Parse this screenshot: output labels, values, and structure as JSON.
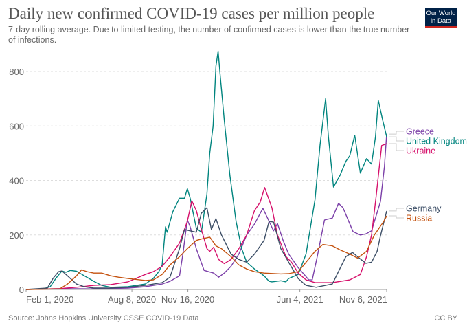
{
  "title": "Daily new confirmed COVID-19 cases per million people",
  "subtitle": "7-day rolling average. Due to limited testing, the number of confirmed cases is lower than the true number of infections.",
  "logo": {
    "line1": "Our World",
    "line2": "in Data",
    "bg_color": "#002147",
    "accent_color": "#ce261e"
  },
  "footer": {
    "source": "Source: Johns Hopkins University CSSE COVID-19 Data",
    "license": "CC BY"
  },
  "chart_data": {
    "type": "line",
    "title": "Daily new confirmed COVID-19 cases per million people",
    "xlabel": "",
    "ylabel": "",
    "xlim": [
      "2020-02-01",
      "2021-11-06"
    ],
    "ylim": [
      0,
      800
    ],
    "x_ticks": [
      {
        "date": "2020-02-01",
        "label": "Feb 1, 2020"
      },
      {
        "date": "2020-08-08",
        "label": "Aug 8, 2020"
      },
      {
        "date": "2020-11-16",
        "label": "Nov 16, 2020"
      },
      {
        "date": "2021-06-04",
        "label": "Jun 4, 2021"
      },
      {
        "date": "2021-11-06",
        "label": "Nov 6, 2021"
      }
    ],
    "y_ticks": [
      0,
      200,
      400,
      600,
      800
    ],
    "grid": "horizontal dashed",
    "legend": "right, labels at line ends",
    "series": [
      {
        "name": "Greece",
        "color": "#7b3fa8",
        "points": [
          [
            "2020-02-01",
            0
          ],
          [
            "2020-04-01",
            3
          ],
          [
            "2020-06-01",
            2
          ],
          [
            "2020-08-01",
            5
          ],
          [
            "2020-09-01",
            10
          ],
          [
            "2020-10-01",
            20
          ],
          [
            "2020-10-15",
            30
          ],
          [
            "2020-11-01",
            50
          ],
          [
            "2020-11-07",
            130
          ],
          [
            "2020-11-15",
            255
          ],
          [
            "2020-11-20",
            230
          ],
          [
            "2020-12-01",
            150
          ],
          [
            "2020-12-15",
            70
          ],
          [
            "2021-01-01",
            60
          ],
          [
            "2021-01-10",
            45
          ],
          [
            "2021-01-20",
            60
          ],
          [
            "2021-02-01",
            85
          ],
          [
            "2021-02-15",
            130
          ],
          [
            "2021-03-01",
            200
          ],
          [
            "2021-03-15",
            240
          ],
          [
            "2021-03-30",
            298
          ],
          [
            "2021-04-10",
            250
          ],
          [
            "2021-04-18",
            215
          ],
          [
            "2021-04-25",
            242
          ],
          [
            "2021-05-05",
            180
          ],
          [
            "2021-05-15",
            130
          ],
          [
            "2021-06-01",
            80
          ],
          [
            "2021-06-20",
            35
          ],
          [
            "2021-06-26",
            35
          ],
          [
            "2021-07-05",
            120
          ],
          [
            "2021-07-18",
            255
          ],
          [
            "2021-08-01",
            262
          ],
          [
            "2021-08-12",
            316
          ],
          [
            "2021-08-20",
            300
          ],
          [
            "2021-09-07",
            212
          ],
          [
            "2021-09-20",
            200
          ],
          [
            "2021-09-30",
            204
          ],
          [
            "2021-10-10",
            215
          ],
          [
            "2021-10-26",
            323
          ],
          [
            "2021-11-02",
            450
          ],
          [
            "2021-11-06",
            570
          ]
        ]
      },
      {
        "name": "United Kingdom",
        "color": "#00847e",
        "points": [
          [
            "2020-02-01",
            0
          ],
          [
            "2020-03-01",
            1
          ],
          [
            "2020-03-15",
            10
          ],
          [
            "2020-03-25",
            40
          ],
          [
            "2020-04-05",
            68
          ],
          [
            "2020-04-12",
            63
          ],
          [
            "2020-04-20",
            70
          ],
          [
            "2020-05-01",
            67
          ],
          [
            "2020-05-15",
            50
          ],
          [
            "2020-06-01",
            30
          ],
          [
            "2020-06-15",
            15
          ],
          [
            "2020-07-01",
            8
          ],
          [
            "2020-08-01",
            10
          ],
          [
            "2020-09-01",
            20
          ],
          [
            "2020-09-15",
            40
          ],
          [
            "2020-09-25",
            65
          ],
          [
            "2020-10-01",
            90
          ],
          [
            "2020-10-07",
            230
          ],
          [
            "2020-10-10",
            210
          ],
          [
            "2020-10-20",
            285
          ],
          [
            "2020-11-01",
            335
          ],
          [
            "2020-11-10",
            335
          ],
          [
            "2020-11-15",
            370
          ],
          [
            "2020-11-20",
            335
          ],
          [
            "2020-12-01",
            225
          ],
          [
            "2020-12-10",
            210
          ],
          [
            "2020-12-20",
            350
          ],
          [
            "2020-12-25",
            500
          ],
          [
            "2020-12-31",
            600
          ],
          [
            "2021-01-05",
            820
          ],
          [
            "2021-01-09",
            875
          ],
          [
            "2021-01-12",
            800
          ],
          [
            "2021-01-20",
            620
          ],
          [
            "2021-01-30",
            420
          ],
          [
            "2021-02-10",
            250
          ],
          [
            "2021-02-20",
            150
          ],
          [
            "2021-03-01",
            100
          ],
          [
            "2021-03-15",
            75
          ],
          [
            "2021-04-01",
            50
          ],
          [
            "2021-04-10",
            30
          ],
          [
            "2021-04-15",
            28
          ],
          [
            "2021-05-01",
            32
          ],
          [
            "2021-05-10",
            28
          ],
          [
            "2021-05-15",
            40
          ],
          [
            "2021-06-01",
            55
          ],
          [
            "2021-06-15",
            130
          ],
          [
            "2021-07-01",
            330
          ],
          [
            "2021-07-10",
            530
          ],
          [
            "2021-07-20",
            700
          ],
          [
            "2021-07-25",
            560
          ],
          [
            "2021-08-03",
            376
          ],
          [
            "2021-08-15",
            420
          ],
          [
            "2021-08-25",
            470
          ],
          [
            "2021-09-01",
            490
          ],
          [
            "2021-09-10",
            566
          ],
          [
            "2021-09-20",
            427
          ],
          [
            "2021-10-01",
            480
          ],
          [
            "2021-10-10",
            460
          ],
          [
            "2021-10-17",
            560
          ],
          [
            "2021-10-22",
            694
          ],
          [
            "2021-10-30",
            620
          ],
          [
            "2021-11-06",
            560
          ]
        ]
      },
      {
        "name": "Ukraine",
        "color": "#d6106b",
        "points": [
          [
            "2020-02-01",
            0
          ],
          [
            "2020-04-01",
            3
          ],
          [
            "2020-05-01",
            8
          ],
          [
            "2020-06-01",
            15
          ],
          [
            "2020-07-01",
            18
          ],
          [
            "2020-08-01",
            28
          ],
          [
            "2020-09-01",
            55
          ],
          [
            "2020-09-15",
            65
          ],
          [
            "2020-10-01",
            85
          ],
          [
            "2020-10-15",
            120
          ],
          [
            "2020-11-01",
            170
          ],
          [
            "2020-11-15",
            250
          ],
          [
            "2020-11-23",
            325
          ],
          [
            "2020-12-01",
            290
          ],
          [
            "2020-12-10",
            220
          ],
          [
            "2020-12-20",
            150
          ],
          [
            "2020-12-25",
            140
          ],
          [
            "2021-01-01",
            155
          ],
          [
            "2021-01-10",
            110
          ],
          [
            "2021-01-20",
            95
          ],
          [
            "2021-02-01",
            110
          ],
          [
            "2021-02-15",
            150
          ],
          [
            "2021-03-01",
            200
          ],
          [
            "2021-03-15",
            290
          ],
          [
            "2021-03-25",
            320
          ],
          [
            "2021-04-02",
            374
          ],
          [
            "2021-04-15",
            300
          ],
          [
            "2021-04-25",
            200
          ],
          [
            "2021-05-10",
            121
          ],
          [
            "2021-05-20",
            100
          ],
          [
            "2021-06-01",
            60
          ],
          [
            "2021-06-15",
            35
          ],
          [
            "2021-07-01",
            25
          ],
          [
            "2021-08-01",
            25
          ],
          [
            "2021-09-01",
            35
          ],
          [
            "2021-09-20",
            55
          ],
          [
            "2021-10-01",
            120
          ],
          [
            "2021-10-10",
            200
          ],
          [
            "2021-10-18",
            338
          ],
          [
            "2021-10-28",
            528
          ],
          [
            "2021-11-06",
            535
          ]
        ]
      },
      {
        "name": "Germany",
        "color": "#3c4e66",
        "points": [
          [
            "2020-02-01",
            0
          ],
          [
            "2020-03-10",
            5
          ],
          [
            "2020-03-20",
            40
          ],
          [
            "2020-03-30",
            65
          ],
          [
            "2020-04-05",
            68
          ],
          [
            "2020-04-15",
            50
          ],
          [
            "2020-05-01",
            20
          ],
          [
            "2020-05-15",
            10
          ],
          [
            "2020-06-01",
            5
          ],
          [
            "2020-07-01",
            5
          ],
          [
            "2020-08-01",
            8
          ],
          [
            "2020-09-01",
            15
          ],
          [
            "2020-10-01",
            25
          ],
          [
            "2020-10-15",
            45
          ],
          [
            "2020-11-01",
            150
          ],
          [
            "2020-11-10",
            220
          ],
          [
            "2020-11-20",
            215
          ],
          [
            "2020-12-01",
            210
          ],
          [
            "2020-12-10",
            280
          ],
          [
            "2020-12-20",
            300
          ],
          [
            "2020-12-28",
            220
          ],
          [
            "2021-01-05",
            260
          ],
          [
            "2021-01-15",
            200
          ],
          [
            "2021-02-01",
            130
          ],
          [
            "2021-02-15",
            110
          ],
          [
            "2021-03-01",
            100
          ],
          [
            "2021-03-15",
            130
          ],
          [
            "2021-04-01",
            180
          ],
          [
            "2021-04-10",
            250
          ],
          [
            "2021-04-18",
            247
          ],
          [
            "2021-05-01",
            150
          ],
          [
            "2021-05-15",
            100
          ],
          [
            "2021-06-01",
            40
          ],
          [
            "2021-06-15",
            15
          ],
          [
            "2021-07-03",
            8
          ],
          [
            "2021-08-01",
            20
          ],
          [
            "2021-08-25",
            120
          ],
          [
            "2021-09-06",
            136
          ],
          [
            "2021-09-15",
            120
          ],
          [
            "2021-09-30",
            96
          ],
          [
            "2021-10-10",
            100
          ],
          [
            "2021-10-20",
            140
          ],
          [
            "2021-10-26",
            197
          ],
          [
            "2021-11-06",
            288
          ]
        ]
      },
      {
        "name": "Russia",
        "color": "#c4520f",
        "points": [
          [
            "2020-02-01",
            0
          ],
          [
            "2020-04-01",
            2
          ],
          [
            "2020-04-15",
            20
          ],
          [
            "2020-05-01",
            50
          ],
          [
            "2020-05-10",
            72
          ],
          [
            "2020-05-20",
            65
          ],
          [
            "2020-06-01",
            60
          ],
          [
            "2020-06-15",
            60
          ],
          [
            "2020-07-01",
            50
          ],
          [
            "2020-07-15",
            45
          ],
          [
            "2020-08-01",
            40
          ],
          [
            "2020-09-01",
            33
          ],
          [
            "2020-09-15",
            35
          ],
          [
            "2020-10-01",
            55
          ],
          [
            "2020-10-15",
            90
          ],
          [
            "2020-11-01",
            120
          ],
          [
            "2020-11-15",
            150
          ],
          [
            "2020-12-01",
            180
          ],
          [
            "2020-12-10",
            185
          ],
          [
            "2020-12-25",
            192
          ],
          [
            "2021-01-05",
            160
          ],
          [
            "2021-01-15",
            150
          ],
          [
            "2021-02-01",
            120
          ],
          [
            "2021-02-15",
            90
          ],
          [
            "2021-03-01",
            75
          ],
          [
            "2021-03-15",
            65
          ],
          [
            "2021-04-01",
            60
          ],
          [
            "2021-05-01",
            57
          ],
          [
            "2021-05-15",
            58
          ],
          [
            "2021-06-01",
            65
          ],
          [
            "2021-06-15",
            100
          ],
          [
            "2021-07-01",
            140
          ],
          [
            "2021-07-15",
            165
          ],
          [
            "2021-08-01",
            160
          ],
          [
            "2021-08-15",
            145
          ],
          [
            "2021-09-01",
            130
          ],
          [
            "2021-09-15",
            115
          ],
          [
            "2021-10-01",
            140
          ],
          [
            "2021-10-15",
            200
          ],
          [
            "2021-11-01",
            250
          ],
          [
            "2021-11-06",
            270
          ]
        ]
      }
    ]
  }
}
